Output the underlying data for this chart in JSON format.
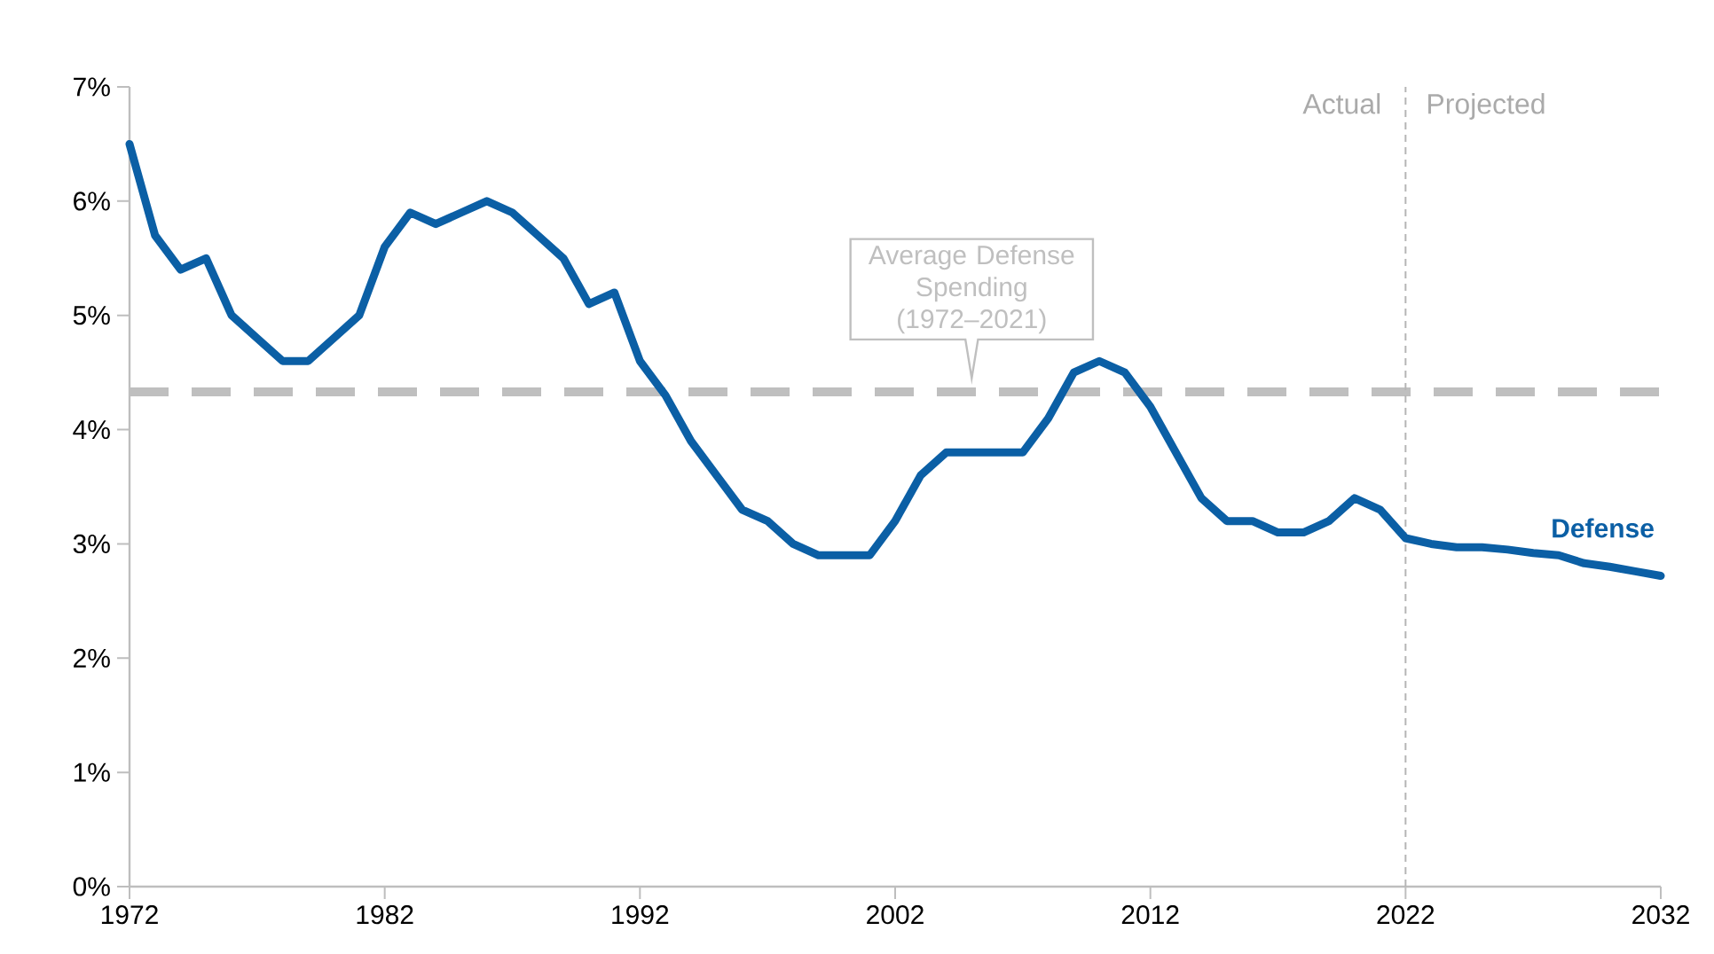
{
  "chart_data": {
    "type": "line",
    "x": [
      1972,
      1973,
      1974,
      1975,
      1976,
      1977,
      1978,
      1979,
      1980,
      1981,
      1982,
      1983,
      1984,
      1985,
      1986,
      1987,
      1988,
      1989,
      1990,
      1991,
      1992,
      1993,
      1994,
      1995,
      1996,
      1997,
      1998,
      1999,
      2000,
      2001,
      2002,
      2003,
      2004,
      2005,
      2006,
      2007,
      2008,
      2009,
      2010,
      2011,
      2012,
      2013,
      2014,
      2015,
      2016,
      2017,
      2018,
      2019,
      2020,
      2021,
      2022,
      2023,
      2024,
      2025,
      2026,
      2027,
      2028,
      2029,
      2030,
      2031,
      2032
    ],
    "series": [
      {
        "name": "Defense",
        "color": "#0b5fa5",
        "values": [
          6.5,
          5.7,
          5.4,
          5.5,
          5.0,
          4.8,
          4.6,
          4.6,
          4.8,
          5.0,
          5.6,
          5.9,
          5.8,
          5.9,
          6.0,
          5.9,
          5.7,
          5.5,
          5.1,
          5.2,
          4.6,
          4.3,
          3.9,
          3.6,
          3.3,
          3.2,
          3.0,
          2.9,
          2.9,
          2.9,
          3.2,
          3.6,
          3.8,
          3.8,
          3.8,
          3.8,
          4.1,
          4.5,
          4.6,
          4.5,
          4.2,
          3.8,
          3.4,
          3.2,
          3.2,
          3.1,
          3.1,
          3.2,
          3.4,
          3.3,
          3.05,
          3.0,
          2.97,
          2.97,
          2.95,
          2.92,
          2.9,
          2.83,
          2.8,
          2.76,
          2.72
        ]
      }
    ],
    "xlim": [
      1972,
      2032
    ],
    "xticks": [
      1972,
      1982,
      1992,
      2002,
      2012,
      2022,
      2032
    ],
    "ylim": [
      0,
      7
    ],
    "yticks": [
      {
        "value": 0,
        "label": "0%"
      },
      {
        "value": 1,
        "label": "1%"
      },
      {
        "value": 2,
        "label": "2%"
      },
      {
        "value": 3,
        "label": "3%"
      },
      {
        "value": 4,
        "label": "4%"
      },
      {
        "value": 5,
        "label": "5%"
      },
      {
        "value": 6,
        "label": "6%"
      },
      {
        "value": 7,
        "label": "7%"
      }
    ],
    "ref_lines": [
      {
        "axis": "y",
        "value": 4.33,
        "label": "Average Defense Spending (1972–2021)",
        "color": "#bfbfbf",
        "line_style": "dashed"
      },
      {
        "axis": "x",
        "value": 2022,
        "color": "#b5b5b5",
        "line_style": "dotted"
      }
    ],
    "annotations": [
      "Actual",
      "Projected"
    ],
    "marker": "none",
    "line_style": "solid",
    "grid": false
  }
}
